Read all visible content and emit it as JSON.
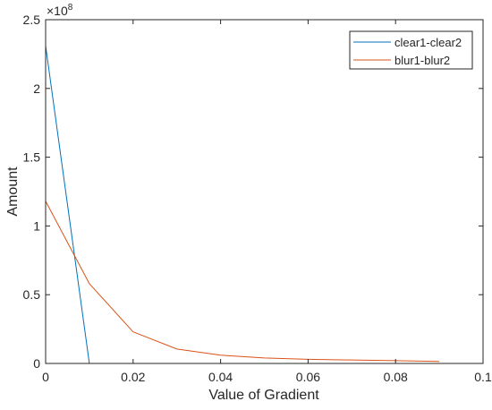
{
  "chart_data": {
    "type": "line",
    "title": "",
    "xlabel": "Value of Gradient",
    "ylabel": "Amount",
    "xlim": [
      0,
      0.1
    ],
    "ylim": [
      0,
      250000000
    ],
    "x_ticks": [
      0,
      0.02,
      0.04,
      0.06,
      0.08,
      0.1
    ],
    "x_tick_labels": [
      "0",
      "0.02",
      "0.04",
      "0.06",
      "0.08",
      "0.1"
    ],
    "y_ticks": [
      0,
      50000000,
      100000000,
      150000000,
      200000000,
      250000000
    ],
    "y_tick_labels": [
      "0",
      "0.5",
      "1",
      "1.5",
      "2",
      "2.5"
    ],
    "y_exponent_base": "×10",
    "y_exponent_power": "8",
    "grid": false,
    "legend_position": "top-right",
    "series": [
      {
        "name": "clear1-clear2",
        "color": "#0072BD",
        "x": [
          0,
          0.01,
          0.02,
          0.03,
          0.04,
          0.05,
          0.06,
          0.07,
          0.08,
          0.09
        ],
        "y": [
          231000000,
          0,
          0,
          0,
          0,
          0,
          0,
          0,
          0,
          0
        ]
      },
      {
        "name": "blur1-blur2",
        "color": "#D95319",
        "x": [
          0,
          0.01,
          0.02,
          0.03,
          0.04,
          0.05,
          0.06,
          0.07,
          0.08,
          0.09
        ],
        "y": [
          118000000,
          58000000,
          23000000,
          10500000,
          6000000,
          4000000,
          3000000,
          2500000,
          2000000,
          1500000
        ]
      }
    ]
  }
}
